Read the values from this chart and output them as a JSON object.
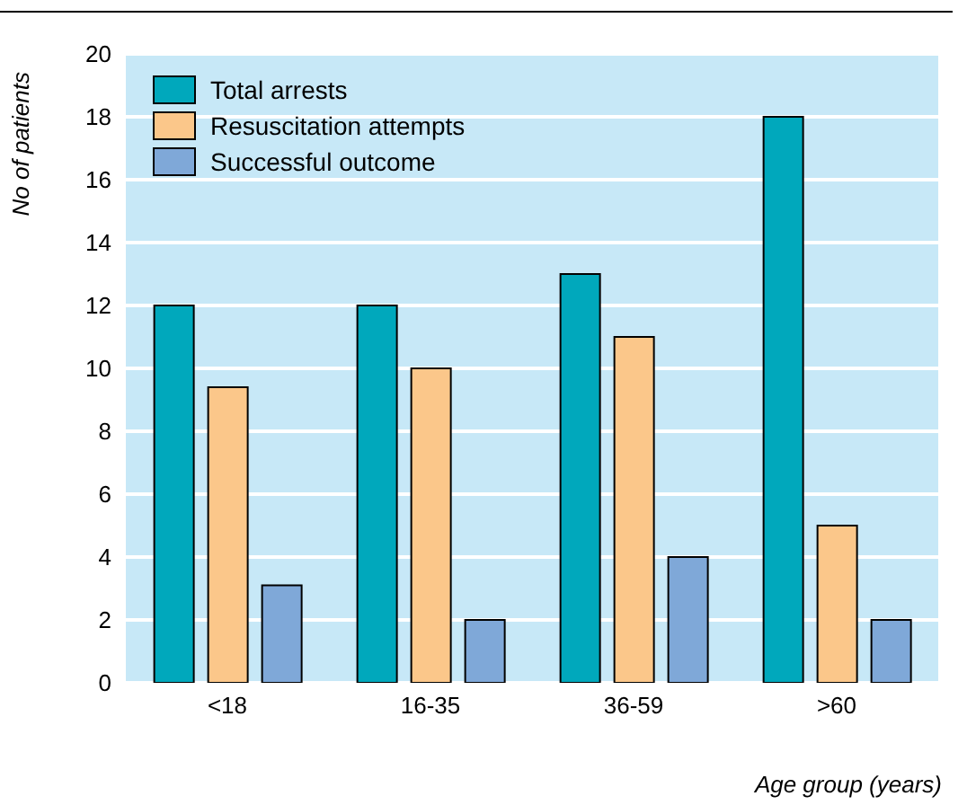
{
  "chart_data": {
    "type": "bar",
    "categories": [
      "<18",
      "16-35",
      "36-59",
      ">60"
    ],
    "series": [
      {
        "name": "Total arrests",
        "color": "#00a8bc",
        "values": [
          12,
          12,
          13,
          18
        ]
      },
      {
        "name": "Resuscitation attempts",
        "color": "#fbc78a",
        "values": [
          9.4,
          10,
          11,
          5
        ]
      },
      {
        "name": "Successful outcome",
        "color": "#7fa8d8",
        "values": [
          3.1,
          2,
          4,
          2
        ]
      }
    ],
    "xlabel": "Age group (years)",
    "ylabel": "No of patients",
    "ylim": [
      0,
      20
    ],
    "yticks": [
      0,
      2,
      4,
      6,
      8,
      10,
      12,
      14,
      16,
      18,
      20
    ],
    "grid": "y",
    "legend": "top left"
  }
}
